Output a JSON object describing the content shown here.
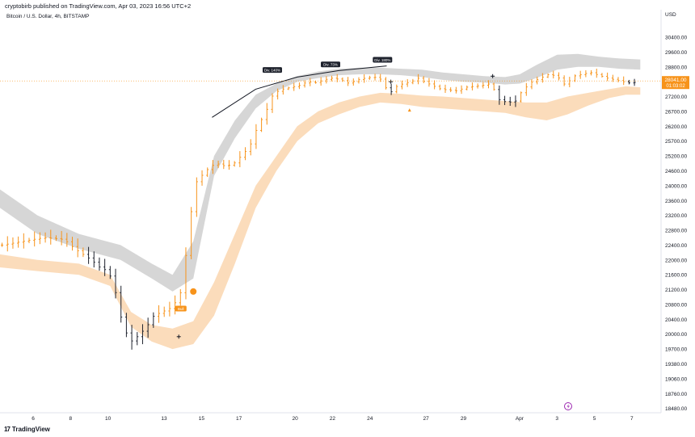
{
  "header": {
    "publisher": "cryptobirb published on TradingView.com, Apr 03, 2023 16:56 UTC+2",
    "symbol": "Bitcoin / U.S. Dollar, 4h, BITSTAMP"
  },
  "footer": {
    "brand": "TradingView",
    "logo_glyph": "17"
  },
  "colors": {
    "orange": "#f7931a",
    "orange_band": "#fbd8b4",
    "gray_band": "#cfcfcf",
    "black_candle": "#1e222d",
    "price_tag": "#f7931a",
    "label_bg": "#1e222d",
    "purple_icon": "#9c27b0"
  },
  "chart_data": {
    "type": "line",
    "title": "",
    "price_axis_label": "USD",
    "y_ticks": [
      30400,
      29600,
      28800,
      28000,
      27200,
      26700,
      26200,
      25700,
      25200,
      24600,
      24000,
      23600,
      23200,
      22800,
      22400,
      22000,
      21600,
      21200,
      20800,
      20400,
      20000,
      19700,
      19380,
      19060,
      18760,
      18480
    ],
    "x_ticks": [
      "6",
      "8",
      "10",
      "13",
      "15",
      "17",
      "20",
      "22",
      "24",
      "27",
      "29",
      "Apr",
      "3",
      "5",
      "7"
    ],
    "x_range_days": [
      4.2,
      36.0
    ],
    "current_price": "28041.00",
    "countdown": "01:03:02",
    "price_series": [
      [
        4.3,
        22400
      ],
      [
        4.8,
        22450
      ],
      [
        5.3,
        22500
      ],
      [
        5.8,
        22550
      ],
      [
        6.3,
        22600
      ],
      [
        6.8,
        22580
      ],
      [
        7.3,
        22550
      ],
      [
        7.8,
        22300
      ],
      [
        8.2,
        22150
      ],
      [
        8.6,
        22000
      ],
      [
        9.0,
        21800
      ],
      [
        9.4,
        21700
      ],
      [
        9.7,
        21300
      ],
      [
        9.9,
        20700
      ],
      [
        10.2,
        20100
      ],
      [
        10.5,
        19850
      ],
      [
        10.8,
        19950
      ],
      [
        11.2,
        20150
      ],
      [
        11.6,
        20500
      ],
      [
        12.0,
        20600
      ],
      [
        12.4,
        20700
      ],
      [
        12.7,
        20900
      ],
      [
        12.95,
        21200
      ],
      [
        13.1,
        22000
      ],
      [
        13.3,
        22600
      ],
      [
        13.5,
        24000
      ],
      [
        13.8,
        24300
      ],
      [
        14.0,
        24500
      ],
      [
        14.3,
        24750
      ],
      [
        14.6,
        24900
      ],
      [
        15.0,
        24800
      ],
      [
        15.4,
        24850
      ],
      [
        15.8,
        25200
      ],
      [
        16.2,
        25500
      ],
      [
        16.6,
        26200
      ],
      [
        17.0,
        26700
      ],
      [
        17.4,
        27400
      ],
      [
        17.8,
        27600
      ],
      [
        18.2,
        27700
      ],
      [
        18.6,
        27800
      ],
      [
        19.0,
        28000
      ],
      [
        19.4,
        27950
      ],
      [
        19.8,
        28100
      ],
      [
        20.2,
        28200
      ],
      [
        20.6,
        28100
      ],
      [
        21.0,
        27900
      ],
      [
        21.4,
        28100
      ],
      [
        21.8,
        28200
      ],
      [
        22.2,
        28250
      ],
      [
        22.6,
        28100
      ],
      [
        22.9,
        27300
      ],
      [
        23.2,
        27700
      ],
      [
        23.6,
        27900
      ],
      [
        24.0,
        28000
      ],
      [
        24.3,
        28200
      ],
      [
        24.6,
        28000
      ],
      [
        25.0,
        27800
      ],
      [
        25.4,
        27600
      ],
      [
        25.8,
        27550
      ],
      [
        26.2,
        27500
      ],
      [
        26.6,
        27700
      ],
      [
        27.0,
        27750
      ],
      [
        27.4,
        27800
      ],
      [
        27.8,
        27900
      ],
      [
        28.2,
        27100
      ],
      [
        28.6,
        27000
      ],
      [
        29.0,
        27050
      ],
      [
        29.4,
        27600
      ],
      [
        29.8,
        28000
      ],
      [
        30.2,
        28200
      ],
      [
        30.6,
        28400
      ],
      [
        31.0,
        28300
      ],
      [
        31.4,
        27800
      ],
      [
        31.8,
        28300
      ],
      [
        32.2,
        28400
      ],
      [
        32.6,
        28500
      ],
      [
        33.0,
        28350
      ],
      [
        33.4,
        28200
      ],
      [
        33.8,
        28100
      ],
      [
        34.2,
        28000
      ],
      [
        34.6,
        27900
      ],
      [
        34.9,
        28041
      ]
    ],
    "gray_band": {
      "upper": [
        [
          4.2,
          23900
        ],
        [
          6.0,
          23200
        ],
        [
          8.0,
          22700
        ],
        [
          10.0,
          22400
        ],
        [
          11.5,
          21900
        ],
        [
          12.5,
          21600
        ],
        [
          13.5,
          22500
        ],
        [
          14.5,
          25200
        ],
        [
          15.5,
          26400
        ],
        [
          16.5,
          27300
        ],
        [
          17.5,
          27900
        ],
        [
          18.5,
          28300
        ],
        [
          19.5,
          28550
        ],
        [
          20.5,
          28700
        ],
        [
          21.5,
          28750
        ],
        [
          22.5,
          28750
        ],
        [
          23.5,
          28700
        ],
        [
          24.5,
          28650
        ],
        [
          25.5,
          28500
        ],
        [
          26.5,
          28400
        ],
        [
          27.5,
          28300
        ],
        [
          28.5,
          28250
        ],
        [
          29.2,
          28400
        ],
        [
          30.0,
          28900
        ],
        [
          31.0,
          29450
        ],
        [
          32.0,
          29500
        ],
        [
          33.0,
          29350
        ],
        [
          34.0,
          29250
        ],
        [
          35.0,
          29200
        ]
      ],
      "lower": [
        [
          4.2,
          23400
        ],
        [
          6.0,
          22700
        ],
        [
          8.0,
          22300
        ],
        [
          10.0,
          22000
        ],
        [
          11.5,
          21500
        ],
        [
          12.5,
          21150
        ],
        [
          13.5,
          21500
        ],
        [
          14.5,
          24400
        ],
        [
          15.5,
          25800
        ],
        [
          16.5,
          26800
        ],
        [
          17.5,
          27500
        ],
        [
          18.5,
          28000
        ],
        [
          19.5,
          28200
        ],
        [
          20.5,
          28350
        ],
        [
          21.5,
          28400
        ],
        [
          22.5,
          28400
        ],
        [
          23.5,
          28350
        ],
        [
          24.5,
          28250
        ],
        [
          25.5,
          28100
        ],
        [
          26.5,
          28000
        ],
        [
          27.5,
          27950
        ],
        [
          28.5,
          27850
        ],
        [
          29.2,
          27900
        ],
        [
          30.0,
          28200
        ],
        [
          31.0,
          28650
        ],
        [
          32.0,
          28800
        ],
        [
          33.0,
          28800
        ],
        [
          34.0,
          28700
        ],
        [
          35.0,
          28650
        ]
      ]
    },
    "orange_band": {
      "upper": [
        [
          4.2,
          22150
        ],
        [
          6.0,
          22000
        ],
        [
          8.0,
          21900
        ],
        [
          9.5,
          21600
        ],
        [
          10.5,
          20600
        ],
        [
          11.5,
          20250
        ],
        [
          12.5,
          20150
        ],
        [
          13.5,
          20350
        ],
        [
          14.5,
          21400
        ],
        [
          15.5,
          22700
        ],
        [
          16.5,
          24000
        ],
        [
          17.5,
          25200
        ],
        [
          18.5,
          26200
        ],
        [
          19.5,
          26700
        ],
        [
          20.5,
          27000
        ],
        [
          21.5,
          27200
        ],
        [
          22.5,
          27400
        ],
        [
          23.5,
          27350
        ],
        [
          24.5,
          27250
        ],
        [
          25.5,
          27200
        ],
        [
          26.5,
          27150
        ],
        [
          27.5,
          27100
        ],
        [
          28.5,
          27050
        ],
        [
          29.5,
          27000
        ],
        [
          30.5,
          27000
        ],
        [
          31.5,
          27200
        ],
        [
          32.5,
          27400
        ],
        [
          33.5,
          27600
        ],
        [
          34.3,
          27750
        ],
        [
          35.0,
          27700
        ]
      ],
      "lower": [
        [
          4.2,
          21800
        ],
        [
          6.0,
          21700
        ],
        [
          8.0,
          21600
        ],
        [
          9.5,
          21300
        ],
        [
          10.5,
          20200
        ],
        [
          11.5,
          19850
        ],
        [
          12.5,
          19700
        ],
        [
          13.5,
          19800
        ],
        [
          14.5,
          20500
        ],
        [
          15.5,
          21900
        ],
        [
          16.5,
          23400
        ],
        [
          17.5,
          24600
        ],
        [
          18.5,
          25700
        ],
        [
          19.5,
          26300
        ],
        [
          20.5,
          26600
        ],
        [
          21.5,
          26850
        ],
        [
          22.5,
          27000
        ],
        [
          23.5,
          26950
        ],
        [
          24.5,
          26850
        ],
        [
          25.5,
          26800
        ],
        [
          26.5,
          26750
        ],
        [
          27.5,
          26700
        ],
        [
          28.5,
          26650
        ],
        [
          29.5,
          26500
        ],
        [
          30.5,
          26400
        ],
        [
          31.5,
          26600
        ],
        [
          32.5,
          26900
        ],
        [
          33.5,
          27150
        ],
        [
          34.3,
          27300
        ],
        [
          35.0,
          27300
        ]
      ]
    },
    "trendline": [
      [
        14.4,
        26500
      ],
      [
        16.5,
        27600
      ],
      [
        18.5,
        28250
      ],
      [
        20.5,
        28600
      ],
      [
        22.8,
        28850
      ]
    ],
    "annotations": [
      {
        "text": "Div. 140%",
        "x": 17.3,
        "y": 28350
      },
      {
        "text": "Div. 73%",
        "x": 20.1,
        "y": 28650
      },
      {
        "text": "Div. 180%",
        "x": 22.6,
        "y": 28900
      },
      {
        "text": "Bull",
        "x": 12.9,
        "y": 20550
      }
    ],
    "markers": [
      {
        "type": "dot",
        "x": 13.5,
        "y": 21150
      },
      {
        "type": "triangle",
        "x": 23.9,
        "y": 26750
      },
      {
        "type": "cross",
        "x": 23.0,
        "y": 28000
      },
      {
        "type": "cross",
        "x": 27.9,
        "y": 28300
      },
      {
        "type": "cross",
        "x": 12.8,
        "y": 19950
      }
    ]
  }
}
